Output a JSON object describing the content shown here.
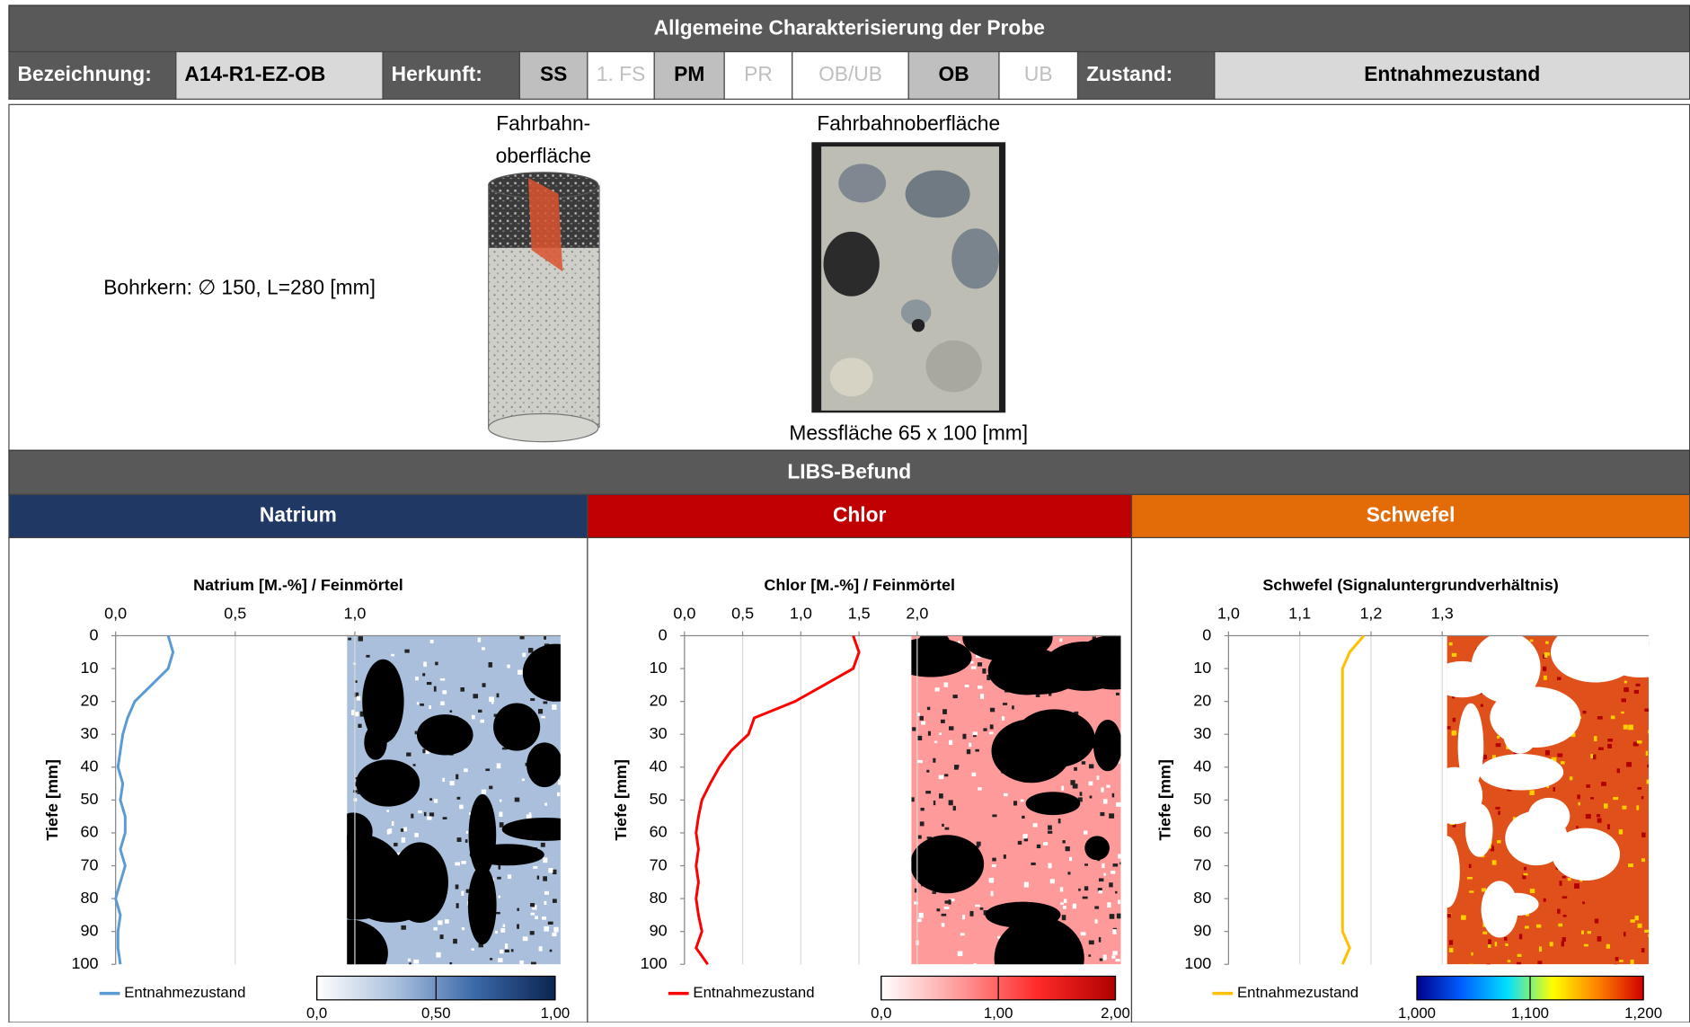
{
  "header": {
    "title": "Allgemeine Charakterisierung der Probe",
    "cells": [
      {
        "text": "Bezeichnung:",
        "style": "label"
      },
      {
        "text": "A14-R1-EZ-OB",
        "style": "value"
      },
      {
        "text": "Herkunft:",
        "style": "label"
      },
      {
        "text": "SS",
        "style": "selected"
      },
      {
        "text": "1. FS",
        "style": "unselected"
      },
      {
        "text": "PM",
        "style": "selected"
      },
      {
        "text": "PR",
        "style": "unselected"
      },
      {
        "text": "OB/UB",
        "style": "unselected"
      },
      {
        "text": "OB",
        "style": "selected"
      },
      {
        "text": "UB",
        "style": "unselected"
      },
      {
        "text": "Zustand:",
        "style": "label"
      },
      {
        "text": "Entnahmezustand",
        "style": "value"
      }
    ]
  },
  "sample": {
    "core_label": "Bohrkern: ∅ 150, L=280 [mm]",
    "cylinder_caption": [
      "Fahrbahn-",
      "oberfläche"
    ],
    "photo_caption_top": "Fahrbahnoberfläche",
    "photo_caption_bottom": "Messfläche 65 x 100 [mm]"
  },
  "libs_title": "LIBS-Befund",
  "chart_data": [
    {
      "type": "line",
      "element": "Natrium",
      "element_color": "#203864",
      "title": "Natrium [M.-%] / Feinmörtel",
      "ylabel": "Tiefe [mm]",
      "xlim": [
        0,
        1.86
      ],
      "xticks": [
        {
          "value": 0,
          "label": "0,0"
        },
        {
          "value": 0.5,
          "label": "0,5"
        },
        {
          "value": 1,
          "label": "1,0"
        }
      ],
      "ylim": [
        0,
        100
      ],
      "yticks": [
        0,
        10,
        20,
        30,
        40,
        50,
        60,
        70,
        80,
        90,
        100
      ],
      "grid": true,
      "y": [
        0,
        5,
        10,
        15,
        20,
        25,
        30,
        35,
        40,
        45,
        50,
        55,
        60,
        65,
        70,
        75,
        80,
        85,
        90,
        95,
        100
      ],
      "series": [
        {
          "name": "Entnahmezustand",
          "color": "#5b9bd5",
          "values": [
            0.22,
            0.24,
            0.22,
            0.15,
            0.08,
            0.05,
            0.03,
            0.02,
            0.01,
            0.03,
            0.02,
            0.04,
            0.04,
            0.02,
            0.04,
            0.02,
            0.0,
            0.02,
            0.01,
            0.01,
            0.02
          ]
        }
      ],
      "colorbar": {
        "colors": [
          "#ffffff",
          "#a9bfdc",
          "#3a68a8",
          "#0b2450"
        ],
        "lim": [
          0,
          1.0
        ],
        "ticks": [
          {
            "value": 0,
            "label": "0,0"
          },
          {
            "value": 0.5,
            "label": "0,50"
          },
          {
            "value": 1.0,
            "label": "1,00"
          }
        ]
      }
    },
    {
      "type": "line",
      "element": "Chlor",
      "element_color": "#c00000",
      "title": "Chlor [M.-%] / Feinmörtel",
      "ylabel": "Tiefe [mm]",
      "xlim": [
        0,
        3.75
      ],
      "xticks": [
        {
          "value": 0,
          "label": "0,0"
        },
        {
          "value": 0.5,
          "label": "0,5"
        },
        {
          "value": 1,
          "label": "1,0"
        },
        {
          "value": 1.5,
          "label": "1,5"
        },
        {
          "value": 2,
          "label": "2,0"
        }
      ],
      "ylim": [
        0,
        100
      ],
      "yticks": [
        0,
        10,
        20,
        30,
        40,
        50,
        60,
        70,
        80,
        90,
        100
      ],
      "grid": true,
      "y": [
        0,
        5,
        10,
        15,
        20,
        25,
        30,
        35,
        40,
        45,
        50,
        55,
        60,
        65,
        70,
        75,
        80,
        85,
        90,
        95,
        100
      ],
      "series": [
        {
          "name": "Entnahmezustand",
          "color": "#ff0000",
          "values": [
            1.45,
            1.5,
            1.45,
            1.2,
            0.95,
            0.6,
            0.55,
            0.4,
            0.3,
            0.22,
            0.15,
            0.12,
            0.1,
            0.12,
            0.1,
            0.12,
            0.1,
            0.12,
            0.15,
            0.1,
            0.2
          ]
        }
      ],
      "colorbar": {
        "colors": [
          "#ffffff",
          "#ff9a9a",
          "#ff2a2a",
          "#b00000"
        ],
        "lim": [
          0,
          2.0
        ],
        "ticks": [
          {
            "value": 0,
            "label": "0,0"
          },
          {
            "value": 1.0,
            "label": "1,00"
          },
          {
            "value": 2.0,
            "label": "2,00"
          }
        ]
      }
    },
    {
      "type": "line",
      "element": "Schwefel",
      "element_color": "#e36c09",
      "title": "Schwefel (Signaluntergrundverhältnis)",
      "ylabel": "Tiefe [mm]",
      "xlim": [
        1.0,
        1.59
      ],
      "xticks": [
        {
          "value": 1.0,
          "label": "1,0"
        },
        {
          "value": 1.1,
          "label": "1,1"
        },
        {
          "value": 1.2,
          "label": "1,2"
        },
        {
          "value": 1.3,
          "label": "1,3"
        }
      ],
      "ylim": [
        0,
        100
      ],
      "yticks": [
        0,
        10,
        20,
        30,
        40,
        50,
        60,
        70,
        80,
        90,
        100
      ],
      "grid": true,
      "y": [
        0,
        5,
        10,
        15,
        20,
        25,
        30,
        35,
        40,
        45,
        50,
        55,
        60,
        65,
        70,
        75,
        80,
        85,
        90,
        95,
        100
      ],
      "series": [
        {
          "name": "Entnahmezustand",
          "color": "#ffc000",
          "values": [
            1.19,
            1.17,
            1.16,
            1.16,
            1.16,
            1.16,
            1.16,
            1.16,
            1.16,
            1.16,
            1.16,
            1.16,
            1.16,
            1.16,
            1.16,
            1.16,
            1.16,
            1.16,
            1.16,
            1.17,
            1.16
          ]
        }
      ],
      "colorbar": {
        "colors": [
          "#00008b",
          "#0060ff",
          "#00e0ff",
          "#ffff00",
          "#ff8000",
          "#d00000"
        ],
        "lim": [
          1.0,
          1.2
        ],
        "ticks": [
          {
            "value": 1.0,
            "label": "1,000"
          },
          {
            "value": 1.1,
            "label": "1,100"
          },
          {
            "value": 1.2,
            "label": "1,200"
          }
        ]
      }
    }
  ]
}
